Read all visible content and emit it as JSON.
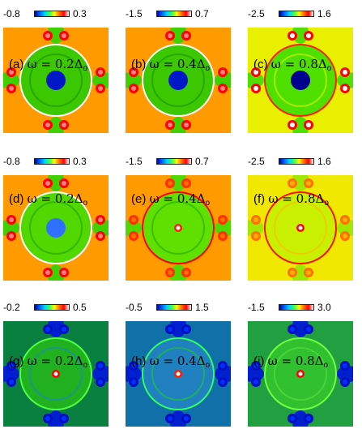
{
  "panels": [
    {
      "label": "(a)",
      "omega_text": "ω = 0.2Δ",
      "sub": "o",
      "cb_min": "-0.8",
      "cb_max": "0.3",
      "scheme": "ab"
    },
    {
      "label": "(b)",
      "omega_text": "ω = 0.4Δ",
      "sub": "o",
      "cb_min": "-1.5",
      "cb_max": "0.7",
      "scheme": "ab"
    },
    {
      "label": "(c)",
      "omega_text": "ω = 0.8Δ",
      "sub": "o",
      "cb_min": "-2.5",
      "cb_max": "1.6",
      "scheme": "c"
    },
    {
      "label": "(d)",
      "omega_text": "ω = 0.2Δ",
      "sub": "o",
      "cb_min": "-0.8",
      "cb_max": "0.3",
      "scheme": "d"
    },
    {
      "label": "(e)",
      "omega_text": "ω = 0.4Δ",
      "sub": "o",
      "cb_min": "-1.5",
      "cb_max": "0.7",
      "scheme": "e"
    },
    {
      "label": "(f)",
      "omega_text": "ω = 0.8Δ",
      "sub": "o",
      "cb_min": "-2.5",
      "cb_max": "1.6",
      "scheme": "f"
    },
    {
      "label": "(g)",
      "omega_text": "ω = 0.2Δ",
      "sub": "o",
      "cb_min": "-0.2",
      "cb_max": "0.5",
      "scheme": "g"
    },
    {
      "label": "(h)",
      "omega_text": "ω = 0.4Δ",
      "sub": "o",
      "cb_min": "-0.5",
      "cb_max": "1.5",
      "scheme": "h"
    },
    {
      "label": "(i)",
      "omega_text": "ω = 0.8Δ",
      "sub": "o",
      "cb_min": "-1.5",
      "cb_max": "3.0",
      "scheme": "i"
    }
  ],
  "colormap": [
    "#0000b0",
    "#0060ff",
    "#00d0ff",
    "#30ff60",
    "#ffff00",
    "#ff7000",
    "#ff0000",
    "#ffffff"
  ]
}
